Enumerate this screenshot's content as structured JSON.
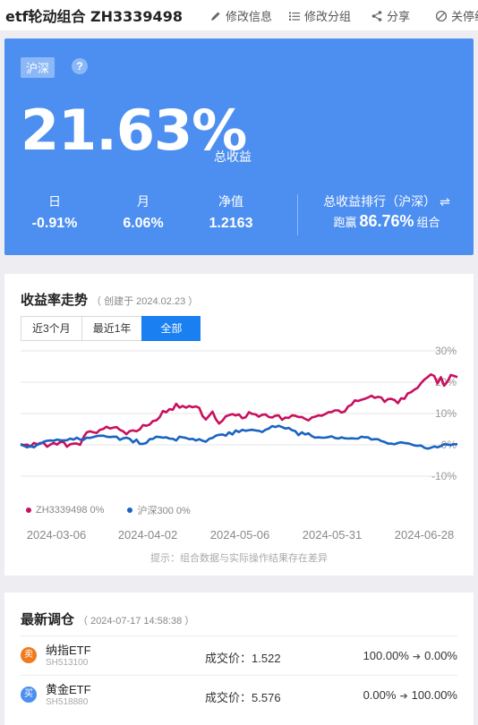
{
  "header": {
    "title": "etf轮动组合 ZH3339498",
    "actions": {
      "edit_info": "修改信息",
      "edit_group": "修改分组",
      "share": "分享",
      "unfollow": "关停组"
    }
  },
  "summary": {
    "market_tag": "沪深",
    "help": "?",
    "total_return": "21.63%",
    "total_return_label": "总收益",
    "day_label": "日",
    "day_value": "-0.91%",
    "month_label": "月",
    "month_value": "6.06%",
    "nav_label": "净值",
    "nav_value": "1.2163",
    "rank_label": "总收益排行（沪深）",
    "rank_prefix": "跑赢",
    "rank_value": "86.76%",
    "rank_suffix": "组合",
    "swap_icon": "⇌"
  },
  "chart": {
    "title": "收益率走势",
    "created": "（ 创建于 2024.02.23 ）",
    "tabs": [
      "近3个月",
      "最近1年",
      "全部"
    ],
    "active_tab": "全部",
    "hint": "提示：组合数据与实际操作结果存在差异"
  },
  "chart_data": {
    "type": "line",
    "x_labels": [
      "2024-03-06",
      "2024-04-02",
      "2024-05-06",
      "2024-05-31",
      "2024-06-28"
    ],
    "y_ticks": [
      "30%",
      "20%",
      "10%",
      "0%",
      "-10%"
    ],
    "ylim": [
      -10,
      30
    ],
    "grid": true,
    "series": [
      {
        "name": "ZH3339498",
        "legend": "ZH3339498 0%",
        "color": "#c8105e",
        "values": [
          0.2,
          -0.1,
          0.1,
          -0.6,
          0.6,
          0.2,
          0.6,
          0.6,
          -0.6,
          0.1,
          0.6,
          0.1,
          0.9,
          0.9,
          -0.6,
          0.2,
          0.4,
          0.4,
          0.0,
          2.4,
          4.0,
          4.3,
          4.0,
          3.8,
          4.8,
          5.1,
          5.8,
          5.2,
          5.5,
          5.7,
          4.8,
          4.3,
          3.4,
          4.4,
          4.6,
          4.3,
          4.9,
          6.3,
          6.1,
          6.5,
          7.6,
          7.8,
          8.8,
          10.8,
          10.4,
          11.4,
          11.2,
          13.1,
          11.9,
          12.4,
          11.9,
          12.4,
          12.0,
          12.3,
          11.8,
          9.2,
          8.1,
          9.3,
          10.6,
          8.2,
          6.8,
          7.7,
          9.1,
          9.5,
          9.8,
          9.4,
          9.7,
          8.5,
          8.8,
          10.4,
          9.9,
          9.7,
          9.0,
          9.6,
          9.7,
          8.9,
          8.7,
          9.3,
          9.4,
          8.0,
          8.7,
          8.6,
          9.4,
          9.3,
          8.9,
          8.9,
          8.3,
          7.8,
          8.7,
          9.0,
          9.4,
          9.3,
          9.8,
          10.4,
          10.5,
          11.0,
          11.0,
          10.3,
          10.7,
          12.3,
          12.8,
          14.2,
          14.0,
          14.4,
          14.7,
          15.1,
          15.7,
          15.0,
          15.3,
          15.1,
          13.7,
          14.6,
          14.7,
          14.3,
          13.3,
          14.9,
          14.7,
          16.4,
          16.8,
          17.6,
          18.2,
          19.7,
          20.8,
          21.6,
          22.5,
          22.0,
          19.6,
          21.6,
          18.9,
          20.2,
          22.3,
          22.0,
          21.6
        ]
      },
      {
        "name": "沪深300",
        "legend": "沪深300 0%",
        "color": "#1a63c0",
        "values": [
          0.1,
          -0.3,
          -0.8,
          -0.3,
          -0.8,
          0.0,
          0.4,
          1.0,
          1.3,
          1.4,
          1.3,
          1.7,
          1.5,
          1.4,
          1.5,
          2.0,
          1.7,
          2.3,
          1.7,
          1.6,
          2.3,
          2.2,
          2.5,
          2.8,
          2.9,
          2.9,
          2.6,
          2.5,
          2.6,
          2.6,
          1.6,
          2.1,
          2.3,
          1.9,
          0.8,
          1.7,
          0.3,
          0.3,
          0.6,
          1.8,
          1.9,
          2.6,
          2.5,
          2.3,
          2.4,
          2.0,
          1.9,
          1.4,
          2.6,
          2.4,
          2.2,
          1.8,
          1.9,
          1.4,
          1.8,
          1.3,
          1.0,
          1.9,
          2.2,
          2.9,
          3.2,
          3.3,
          2.9,
          4.0,
          3.3,
          4.6,
          4.1,
          4.8,
          4.5,
          4.7,
          4.8,
          4.6,
          4.5,
          4.1,
          4.8,
          5.2,
          6.0,
          5.7,
          6.1,
          5.7,
          5.2,
          5.4,
          4.7,
          4.4,
          3.1,
          4.0,
          3.3,
          3.7,
          2.8,
          2.3,
          2.4,
          2.3,
          2.3,
          2.5,
          2.7,
          2.2,
          2.0,
          2.4,
          2.1,
          2.0,
          2.1,
          2.0,
          2.0,
          2.6,
          2.4,
          2.4,
          1.7,
          1.8,
          1.8,
          1.2,
          0.9,
          0.4,
          0.4,
          0.2,
          0.6,
          0.8,
          0.6,
          0.5,
          0.2,
          -0.2,
          -0.3,
          -0.2,
          -0.9,
          -1.2,
          -0.9,
          -0.5,
          -0.8,
          -0.4,
          0.2,
          0.1,
          -0.1,
          0.2,
          0.2
        ]
      }
    ]
  },
  "trades": {
    "title": "最新调仓",
    "time": "（ 2024-07-17 14:58:38 ）",
    "price_label": "成交价：",
    "items": [
      {
        "action": "卖",
        "action_color": "#f07a1e",
        "name": "纳指ETF",
        "code": "SH513100",
        "price": "1.522",
        "from": "100.00%",
        "to": "0.00%"
      },
      {
        "action": "买",
        "action_color": "#4d8ff0",
        "name": "黄金ETF",
        "code": "SH518880",
        "price": "5.576",
        "from": "0.00%",
        "to": "100.00%"
      }
    ]
  }
}
